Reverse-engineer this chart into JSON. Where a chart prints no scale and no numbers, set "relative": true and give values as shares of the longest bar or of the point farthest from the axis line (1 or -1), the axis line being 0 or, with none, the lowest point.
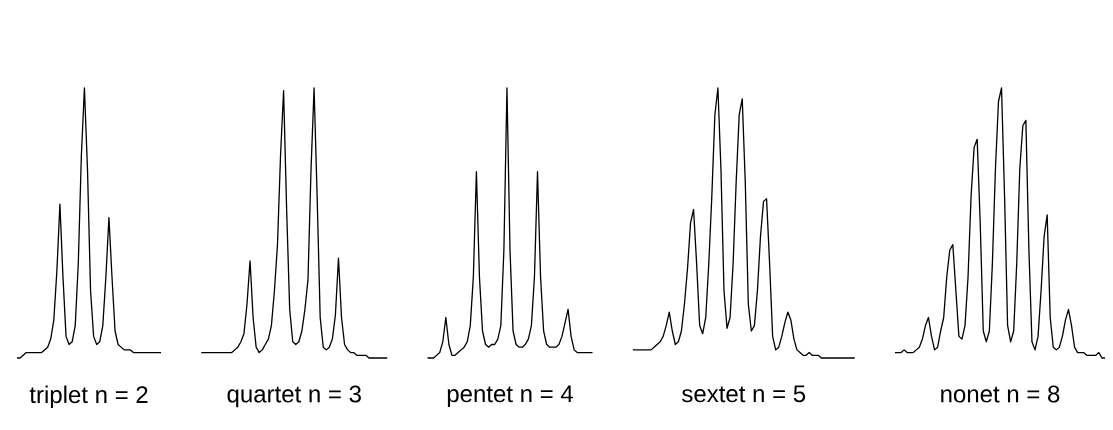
{
  "chart_data": [
    {
      "type": "line",
      "title": "triplet  n = 2",
      "relative": true,
      "color": "#000000",
      "categories": [
        null,
        null,
        null,
        null,
        null,
        null,
        null,
        null,
        null,
        null,
        null,
        null,
        null,
        null,
        null,
        null,
        null,
        null,
        null,
        null,
        null,
        null,
        null,
        null,
        null,
        null,
        null,
        null,
        null,
        null,
        null,
        null,
        null,
        null,
        null,
        null,
        null,
        null,
        null,
        null,
        null,
        null,
        null,
        null,
        null,
        null,
        null,
        null
      ],
      "values": [
        0,
        0,
        0.01,
        0.02,
        0.02,
        0.02,
        0.02,
        0.02,
        0.02,
        0.03,
        0.04,
        0.07,
        0.14,
        0.32,
        0.57,
        0.3,
        0.08,
        0.05,
        0.06,
        0.12,
        0.35,
        0.75,
        1.0,
        0.7,
        0.25,
        0.08,
        0.05,
        0.06,
        0.12,
        0.3,
        0.52,
        0.3,
        0.1,
        0.05,
        0.04,
        0.03,
        0.03,
        0.03,
        0.02,
        0.02,
        0.02,
        0.02,
        0.02,
        0.02,
        0.02,
        0.02,
        0.02,
        0.02
      ]
    },
    {
      "type": "line",
      "title": "quartet  n = 3",
      "relative": true,
      "color": "#000000",
      "categories": [
        null,
        null,
        null,
        null,
        null,
        null,
        null,
        null,
        null,
        null,
        null,
        null,
        null,
        null,
        null,
        null,
        null,
        null,
        null,
        null,
        null,
        null,
        null,
        null,
        null,
        null,
        null,
        null,
        null,
        null,
        null,
        null,
        null,
        null,
        null,
        null,
        null,
        null,
        null,
        null,
        null,
        null,
        null,
        null,
        null,
        null,
        null,
        null,
        null,
        null,
        null,
        null,
        null,
        null,
        null,
        null,
        null,
        null,
        null,
        null,
        null,
        null
      ],
      "values": [
        0.02,
        0.02,
        0.02,
        0.02,
        0.02,
        0.02,
        0.02,
        0.02,
        0.02,
        0.02,
        0.02,
        0.03,
        0.04,
        0.06,
        0.09,
        0.2,
        0.36,
        0.15,
        0.04,
        0.02,
        0.03,
        0.05,
        0.07,
        0.12,
        0.25,
        0.42,
        0.75,
        0.99,
        0.55,
        0.18,
        0.06,
        0.05,
        0.06,
        0.1,
        0.18,
        0.29,
        0.7,
        1.0,
        0.6,
        0.15,
        0.04,
        0.03,
        0.04,
        0.07,
        0.16,
        0.37,
        0.15,
        0.05,
        0.03,
        0.02,
        0.02,
        0.01,
        0.01,
        0.01,
        0.01,
        0,
        0,
        0,
        0,
        0,
        0,
        0
      ]
    },
    {
      "type": "line",
      "title": "pentet  n = 4",
      "relative": true,
      "color": "#000000",
      "categories": [
        null,
        null,
        null,
        null,
        null,
        null,
        null,
        null,
        null,
        null,
        null,
        null,
        null,
        null,
        null,
        null,
        null,
        null,
        null,
        null,
        null,
        null,
        null,
        null,
        null,
        null,
        null,
        null,
        null,
        null,
        null,
        null,
        null,
        null,
        null,
        null,
        null,
        null,
        null,
        null,
        null,
        null,
        null,
        null,
        null,
        null,
        null,
        null,
        null,
        null,
        null,
        null,
        null,
        null,
        null
      ],
      "values": [
        0,
        0,
        0,
        0.01,
        0.02,
        0.06,
        0.15,
        0.05,
        0.01,
        0.01,
        0.02,
        0.03,
        0.04,
        0.06,
        0.12,
        0.3,
        0.69,
        0.3,
        0.1,
        0.05,
        0.04,
        0.05,
        0.05,
        0.07,
        0.12,
        0.4,
        1.0,
        0.4,
        0.1,
        0.05,
        0.04,
        0.04,
        0.05,
        0.07,
        0.12,
        0.3,
        0.69,
        0.3,
        0.1,
        0.05,
        0.04,
        0.04,
        0.04,
        0.05,
        0.08,
        0.13,
        0.18,
        0.08,
        0.03,
        0.02,
        0.02,
        0.02,
        0.02,
        0.02,
        0.02
      ]
    },
    {
      "type": "line",
      "title": "sextet  n = 5",
      "relative": true,
      "color": "#000000",
      "categories": [
        null,
        null,
        null,
        null,
        null,
        null,
        null,
        null,
        null,
        null,
        null,
        null,
        null,
        null,
        null,
        null,
        null,
        null,
        null,
        null,
        null,
        null,
        null,
        null,
        null,
        null,
        null,
        null,
        null,
        null,
        null,
        null,
        null,
        null,
        null,
        null,
        null,
        null,
        null,
        null,
        null,
        null,
        null,
        null,
        null,
        null,
        null,
        null,
        null,
        null,
        null,
        null,
        null,
        null,
        null,
        null,
        null,
        null,
        null,
        null,
        null,
        null,
        null,
        null,
        null,
        null,
        null,
        null,
        null,
        null,
        null,
        null,
        null,
        null
      ],
      "values": [
        0.03,
        0.03,
        0.03,
        0.03,
        0.03,
        0.03,
        0.03,
        0.04,
        0.05,
        0.06,
        0.08,
        0.12,
        0.17,
        0.1,
        0.05,
        0.06,
        0.1,
        0.2,
        0.33,
        0.5,
        0.55,
        0.35,
        0.12,
        0.09,
        0.15,
        0.35,
        0.6,
        0.9,
        1.0,
        0.7,
        0.25,
        0.11,
        0.15,
        0.35,
        0.65,
        0.9,
        0.96,
        0.65,
        0.2,
        0.1,
        0.12,
        0.25,
        0.45,
        0.58,
        0.59,
        0.35,
        0.08,
        0.03,
        0.04,
        0.08,
        0.13,
        0.17,
        0.14,
        0.07,
        0.03,
        0.02,
        0.01,
        0.01,
        0.02,
        0.01,
        0.01,
        0.01,
        0,
        0,
        0,
        0,
        0,
        0,
        0,
        0,
        0,
        0,
        0,
        0
      ]
    },
    {
      "type": "line",
      "title": "nonet  n = 8",
      "relative": true,
      "color": "#000000",
      "categories": [
        null,
        null,
        null,
        null,
        null,
        null,
        null,
        null,
        null,
        null,
        null,
        null,
        null,
        null,
        null,
        null,
        null,
        null,
        null,
        null,
        null,
        null,
        null,
        null,
        null,
        null,
        null,
        null,
        null,
        null,
        null,
        null,
        null,
        null,
        null,
        null,
        null,
        null,
        null,
        null,
        null,
        null,
        null,
        null,
        null,
        null,
        null,
        null,
        null,
        null,
        null,
        null,
        null,
        null,
        null,
        null,
        null,
        null,
        null,
        null,
        null,
        null,
        null,
        null,
        null,
        null,
        null,
        null,
        null,
        null
      ],
      "values": [
        0.02,
        0.02,
        0.02,
        0.03,
        0.02,
        0.02,
        0.02,
        0.03,
        0.04,
        0.07,
        0.12,
        0.15,
        0.08,
        0.03,
        0.04,
        0.1,
        0.15,
        0.3,
        0.4,
        0.42,
        0.25,
        0.08,
        0.07,
        0.12,
        0.3,
        0.6,
        0.78,
        0.81,
        0.5,
        0.1,
        0.06,
        0.1,
        0.35,
        0.7,
        0.95,
        1.0,
        0.6,
        0.12,
        0.06,
        0.1,
        0.35,
        0.7,
        0.86,
        0.88,
        0.4,
        0.06,
        0.03,
        0.08,
        0.25,
        0.45,
        0.53,
        0.15,
        0.04,
        0.03,
        0.04,
        0.08,
        0.14,
        0.18,
        0.12,
        0.04,
        0.02,
        0.02,
        0.02,
        0.01,
        0.01,
        0.01,
        0.01,
        0.02,
        0,
        0
      ]
    }
  ]
}
